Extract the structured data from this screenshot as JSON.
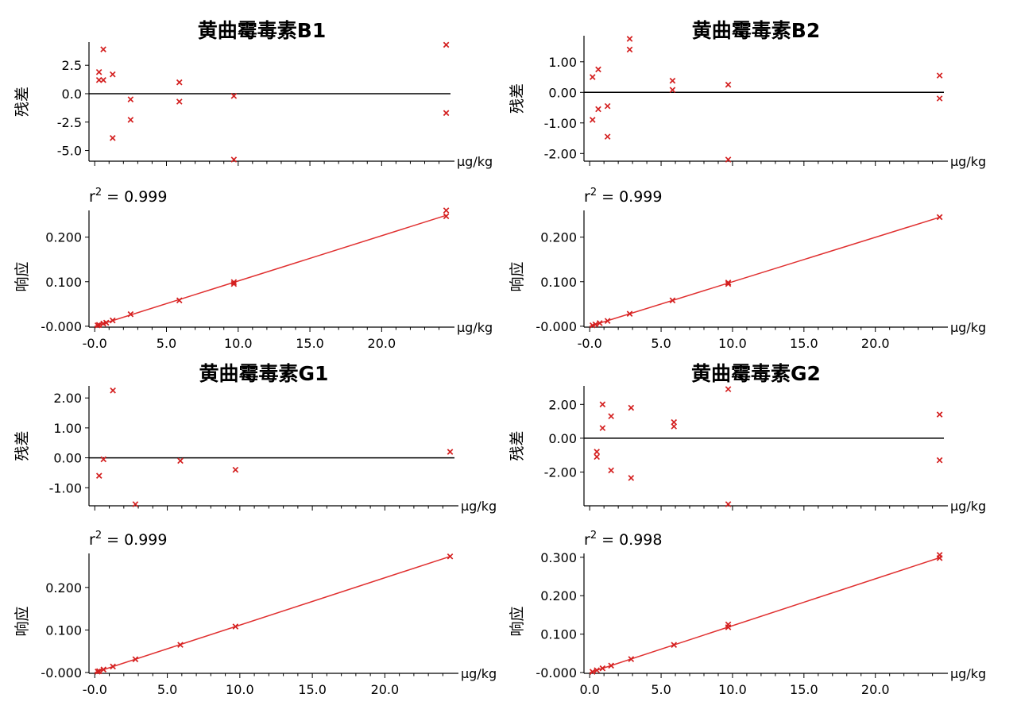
{
  "colors": {
    "points": "#d42020",
    "fit_line": "#e03030",
    "axes": "#000000"
  },
  "chart_data": [
    {
      "type": "scatter",
      "title": "黄曲霉毒素B1",
      "residual": {
        "ylabel": "残差",
        "unit": "μg/kg",
        "ylim": [
          -5.8,
          4.4
        ],
        "yticks": [
          "2.5",
          "0.0",
          "-2.5",
          "-5.0"
        ],
        "points": [
          [
            0.3,
            1.9
          ],
          [
            0.3,
            1.2
          ],
          [
            0.6,
            1.2
          ],
          [
            0.6,
            3.9
          ],
          [
            1.25,
            1.7
          ],
          [
            1.25,
            -3.9
          ],
          [
            2.5,
            -0.5
          ],
          [
            2.5,
            -2.3
          ],
          [
            5.9,
            1.0
          ],
          [
            5.9,
            -0.7
          ],
          [
            9.7,
            -0.2
          ],
          [
            9.7,
            -5.8
          ],
          [
            24.5,
            4.3
          ],
          [
            24.5,
            -1.7
          ]
        ]
      },
      "calibration": {
        "r2_label": "r",
        "r2_sup": "2",
        "r2_value": " = 0.999",
        "ylabel": "响应",
        "unit": "μg/kg",
        "xlim": [
          -0.4,
          24.8
        ],
        "ylim": [
          -0.002,
          0.26
        ],
        "xticks": [
          "-0.0",
          "5.0",
          "10.0",
          "15.0",
          "20.0"
        ],
        "yticks": [
          "0.200",
          "0.100",
          "-0.000"
        ],
        "fit": {
          "slope": 0.01016,
          "intercept": 0.0
        },
        "points": [
          [
            0.2,
            0.002
          ],
          [
            0.3,
            0.003
          ],
          [
            0.6,
            0.006
          ],
          [
            0.8,
            0.008
          ],
          [
            1.25,
            0.013
          ],
          [
            2.5,
            0.027
          ],
          [
            5.9,
            0.058
          ],
          [
            9.7,
            0.095
          ],
          [
            9.7,
            0.099
          ],
          [
            24.5,
            0.247
          ],
          [
            24.5,
            0.26
          ]
        ]
      }
    },
    {
      "type": "scatter",
      "title": "黄曲霉毒素B2",
      "residual": {
        "ylabel": "残差",
        "unit": "μg/kg",
        "ylim": [
          -2.2,
          1.8
        ],
        "yticks": [
          "1.00",
          "0.00",
          "-1.00",
          "-2.00"
        ],
        "points": [
          [
            0.2,
            0.5
          ],
          [
            0.2,
            -0.9
          ],
          [
            0.6,
            0.75
          ],
          [
            0.6,
            -0.55
          ],
          [
            1.25,
            -0.45
          ],
          [
            1.25,
            -1.45
          ],
          [
            2.8,
            1.75
          ],
          [
            2.8,
            1.4
          ],
          [
            5.8,
            0.38
          ],
          [
            5.8,
            0.08
          ],
          [
            9.7,
            0.25
          ],
          [
            9.7,
            -2.2
          ],
          [
            24.5,
            0.55
          ],
          [
            24.5,
            -0.2
          ]
        ]
      },
      "calibration": {
        "r2_label": "r",
        "r2_sup": "2",
        "r2_value": " = 0.999",
        "ylabel": "响应",
        "unit": "μg/kg",
        "xlim": [
          -0.4,
          24.8
        ],
        "ylim": [
          -0.002,
          0.26
        ],
        "xticks": [
          "-0.0",
          "5.0",
          "10.0",
          "15.0",
          "20.0"
        ],
        "yticks": [
          "0.200",
          "0.100",
          "-0.000"
        ],
        "fit": {
          "slope": 0.00998,
          "intercept": 0.0
        },
        "points": [
          [
            0.2,
            0.002
          ],
          [
            0.4,
            0.004
          ],
          [
            0.7,
            0.007
          ],
          [
            1.25,
            0.012
          ],
          [
            2.8,
            0.028
          ],
          [
            5.8,
            0.058
          ],
          [
            9.7,
            0.095
          ],
          [
            9.7,
            0.098
          ],
          [
            24.5,
            0.245
          ]
        ]
      }
    },
    {
      "type": "scatter",
      "title": "黄曲霉毒素G1",
      "residual": {
        "ylabel": "残差",
        "unit": "μg/kg",
        "ylim": [
          -1.55,
          2.35
        ],
        "yticks": [
          "2.00",
          "1.00",
          "0.00",
          "-1.00"
        ],
        "points": [
          [
            0.3,
            -0.6
          ],
          [
            0.6,
            -0.05
          ],
          [
            1.25,
            2.25
          ],
          [
            2.8,
            -1.55
          ],
          [
            5.9,
            -0.1
          ],
          [
            9.7,
            -0.4
          ],
          [
            24.5,
            0.2
          ]
        ]
      },
      "calibration": {
        "r2_label": "r",
        "r2_sup": "2",
        "r2_value": " = 0.999",
        "ylabel": "响应",
        "unit": "μg/kg",
        "xlim": [
          -0.4,
          24.8
        ],
        "ylim": [
          -0.002,
          0.28
        ],
        "xticks": [
          "-0.0",
          "5.0",
          "10.0",
          "15.0",
          "20.0"
        ],
        "yticks": [
          "0.200",
          "0.100",
          "-0.000"
        ],
        "fit": {
          "slope": 0.01114,
          "intercept": 0.0
        },
        "points": [
          [
            0.2,
            0.002
          ],
          [
            0.3,
            0.003
          ],
          [
            0.6,
            0.007
          ],
          [
            1.25,
            0.014
          ],
          [
            2.8,
            0.031
          ],
          [
            5.9,
            0.065
          ],
          [
            9.7,
            0.108
          ],
          [
            24.5,
            0.273
          ]
        ]
      }
    },
    {
      "type": "scatter",
      "title": "黄曲霉毒素G2",
      "residual": {
        "ylabel": "残差",
        "unit": "μg/kg",
        "ylim": [
          -3.9,
          3.0
        ],
        "yticks": [
          "2.00",
          "0.00",
          "-2.00"
        ],
        "points": [
          [
            0.5,
            -0.8
          ],
          [
            0.5,
            -1.1
          ],
          [
            0.9,
            2.0
          ],
          [
            0.9,
            0.6
          ],
          [
            1.5,
            1.3
          ],
          [
            1.5,
            -1.9
          ],
          [
            2.9,
            1.8
          ],
          [
            2.9,
            -2.35
          ],
          [
            5.9,
            0.95
          ],
          [
            5.9,
            0.7
          ],
          [
            9.7,
            2.9
          ],
          [
            9.7,
            -3.9
          ],
          [
            24.5,
            1.4
          ],
          [
            24.5,
            -1.3
          ]
        ]
      },
      "calibration": {
        "r2_label": "r",
        "r2_sup": "2",
        "r2_value": " = 0.998",
        "ylabel": "响应",
        "unit": "μg/kg",
        "xlim": [
          -0.4,
          24.8
        ],
        "ylim": [
          -0.002,
          0.31
        ],
        "xticks": [
          "0.0",
          "5.0",
          "10.0",
          "15.0",
          "20.0"
        ],
        "yticks": [
          "0.300",
          "0.200",
          "0.100",
          "-0.000"
        ],
        "fit": {
          "slope": 0.0122,
          "intercept": 0.0
        },
        "points": [
          [
            0.2,
            0.002
          ],
          [
            0.5,
            0.006
          ],
          [
            0.9,
            0.011
          ],
          [
            1.5,
            0.018
          ],
          [
            2.9,
            0.035
          ],
          [
            5.9,
            0.072
          ],
          [
            9.7,
            0.118
          ],
          [
            9.7,
            0.125
          ],
          [
            24.5,
            0.298
          ],
          [
            24.5,
            0.306
          ]
        ]
      }
    }
  ]
}
